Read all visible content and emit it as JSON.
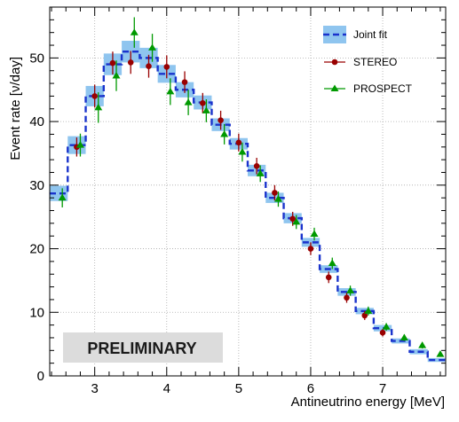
{
  "chart_data": {
    "type": "line",
    "xlabel": "Antineutrino energy [MeV]",
    "ylabel": "Event rate [ν/day]",
    "xlim": [
      2.375,
      7.875
    ],
    "ylim": [
      0,
      58
    ],
    "x_ticks": [
      "3",
      "4",
      "5",
      "6",
      "7"
    ],
    "y_ticks": [
      "0",
      "10",
      "20",
      "30",
      "40",
      "50"
    ],
    "x_tick_values": [
      3,
      4,
      5,
      6,
      7
    ],
    "y_tick_values": [
      0,
      10,
      20,
      30,
      40,
      50
    ],
    "grid": true,
    "legend_position": "top-right",
    "annotation": "PRELIMINARY",
    "colors": {
      "joint": "#1a33cc",
      "band": "#8fc5ef",
      "stereo": "#990000",
      "prospect": "#009900",
      "grid": "#aaaaaa",
      "prelim_box": "#dcdcdc"
    },
    "series": [
      {
        "name": "Joint fit",
        "style": "step",
        "bin_edges": [
          2.375,
          2.625,
          2.875,
          3.125,
          3.375,
          3.625,
          3.875,
          4.125,
          4.375,
          4.625,
          4.875,
          5.125,
          5.375,
          5.625,
          5.875,
          6.125,
          6.375,
          6.625,
          6.875,
          7.125,
          7.375,
          7.625,
          7.875
        ],
        "values": [
          28.7,
          36.3,
          44.0,
          49.0,
          51.0,
          50.0,
          47.5,
          45.0,
          43.0,
          39.5,
          36.5,
          32.3,
          28.0,
          24.8,
          21.0,
          16.8,
          13.2,
          10.2,
          7.5,
          5.5,
          3.8,
          2.5
        ],
        "band": [
          1.2,
          1.4,
          1.6,
          1.7,
          1.7,
          1.6,
          1.4,
          1.2,
          1.1,
          1.0,
          0.9,
          0.9,
          0.8,
          0.8,
          0.7,
          0.6,
          0.6,
          0.5,
          0.5,
          0.4,
          0.4,
          0.3
        ]
      },
      {
        "name": "STEREO",
        "marker": "circle",
        "x": [
          2.75,
          3.0,
          3.25,
          3.5,
          3.75,
          4.0,
          4.25,
          4.5,
          4.75,
          5.0,
          5.25,
          5.5,
          5.75,
          6.0,
          6.25,
          6.5,
          6.75,
          7.0
        ],
        "y": [
          36.0,
          44.0,
          49.2,
          49.3,
          48.7,
          48.6,
          46.2,
          42.9,
          40.2,
          36.7,
          33.0,
          28.8,
          24.7,
          20.0,
          15.5,
          12.3,
          9.5,
          6.8
        ],
        "yerr": [
          1.5,
          1.8,
          1.8,
          1.8,
          1.8,
          1.8,
          1.7,
          1.6,
          1.5,
          1.4,
          1.3,
          1.2,
          1.1,
          1.0,
          0.9,
          0.8,
          0.7,
          0.6
        ]
      },
      {
        "name": "PROSPECT",
        "marker": "triangle",
        "x": [
          2.55,
          2.8,
          3.05,
          3.3,
          3.55,
          3.8,
          4.05,
          4.3,
          4.55,
          4.8,
          5.05,
          5.3,
          5.55,
          5.8,
          6.05,
          6.3,
          6.55,
          6.8,
          7.05,
          7.3,
          7.55,
          7.8
        ],
        "y": [
          28.0,
          36.3,
          42.2,
          47.2,
          54.0,
          51.6,
          44.7,
          43.0,
          41.7,
          38.0,
          35.2,
          31.8,
          27.8,
          24.2,
          22.3,
          17.7,
          13.4,
          10.2,
          7.7,
          6.0,
          4.8,
          3.4
        ],
        "yerr": [
          1.5,
          1.8,
          2.4,
          2.4,
          2.4,
          2.2,
          2.1,
          2.0,
          1.8,
          1.6,
          1.5,
          1.3,
          1.2,
          1.1,
          1.0,
          0.9,
          0.8,
          0.7,
          0.6,
          0.5,
          0.5,
          0.4
        ]
      }
    ]
  }
}
